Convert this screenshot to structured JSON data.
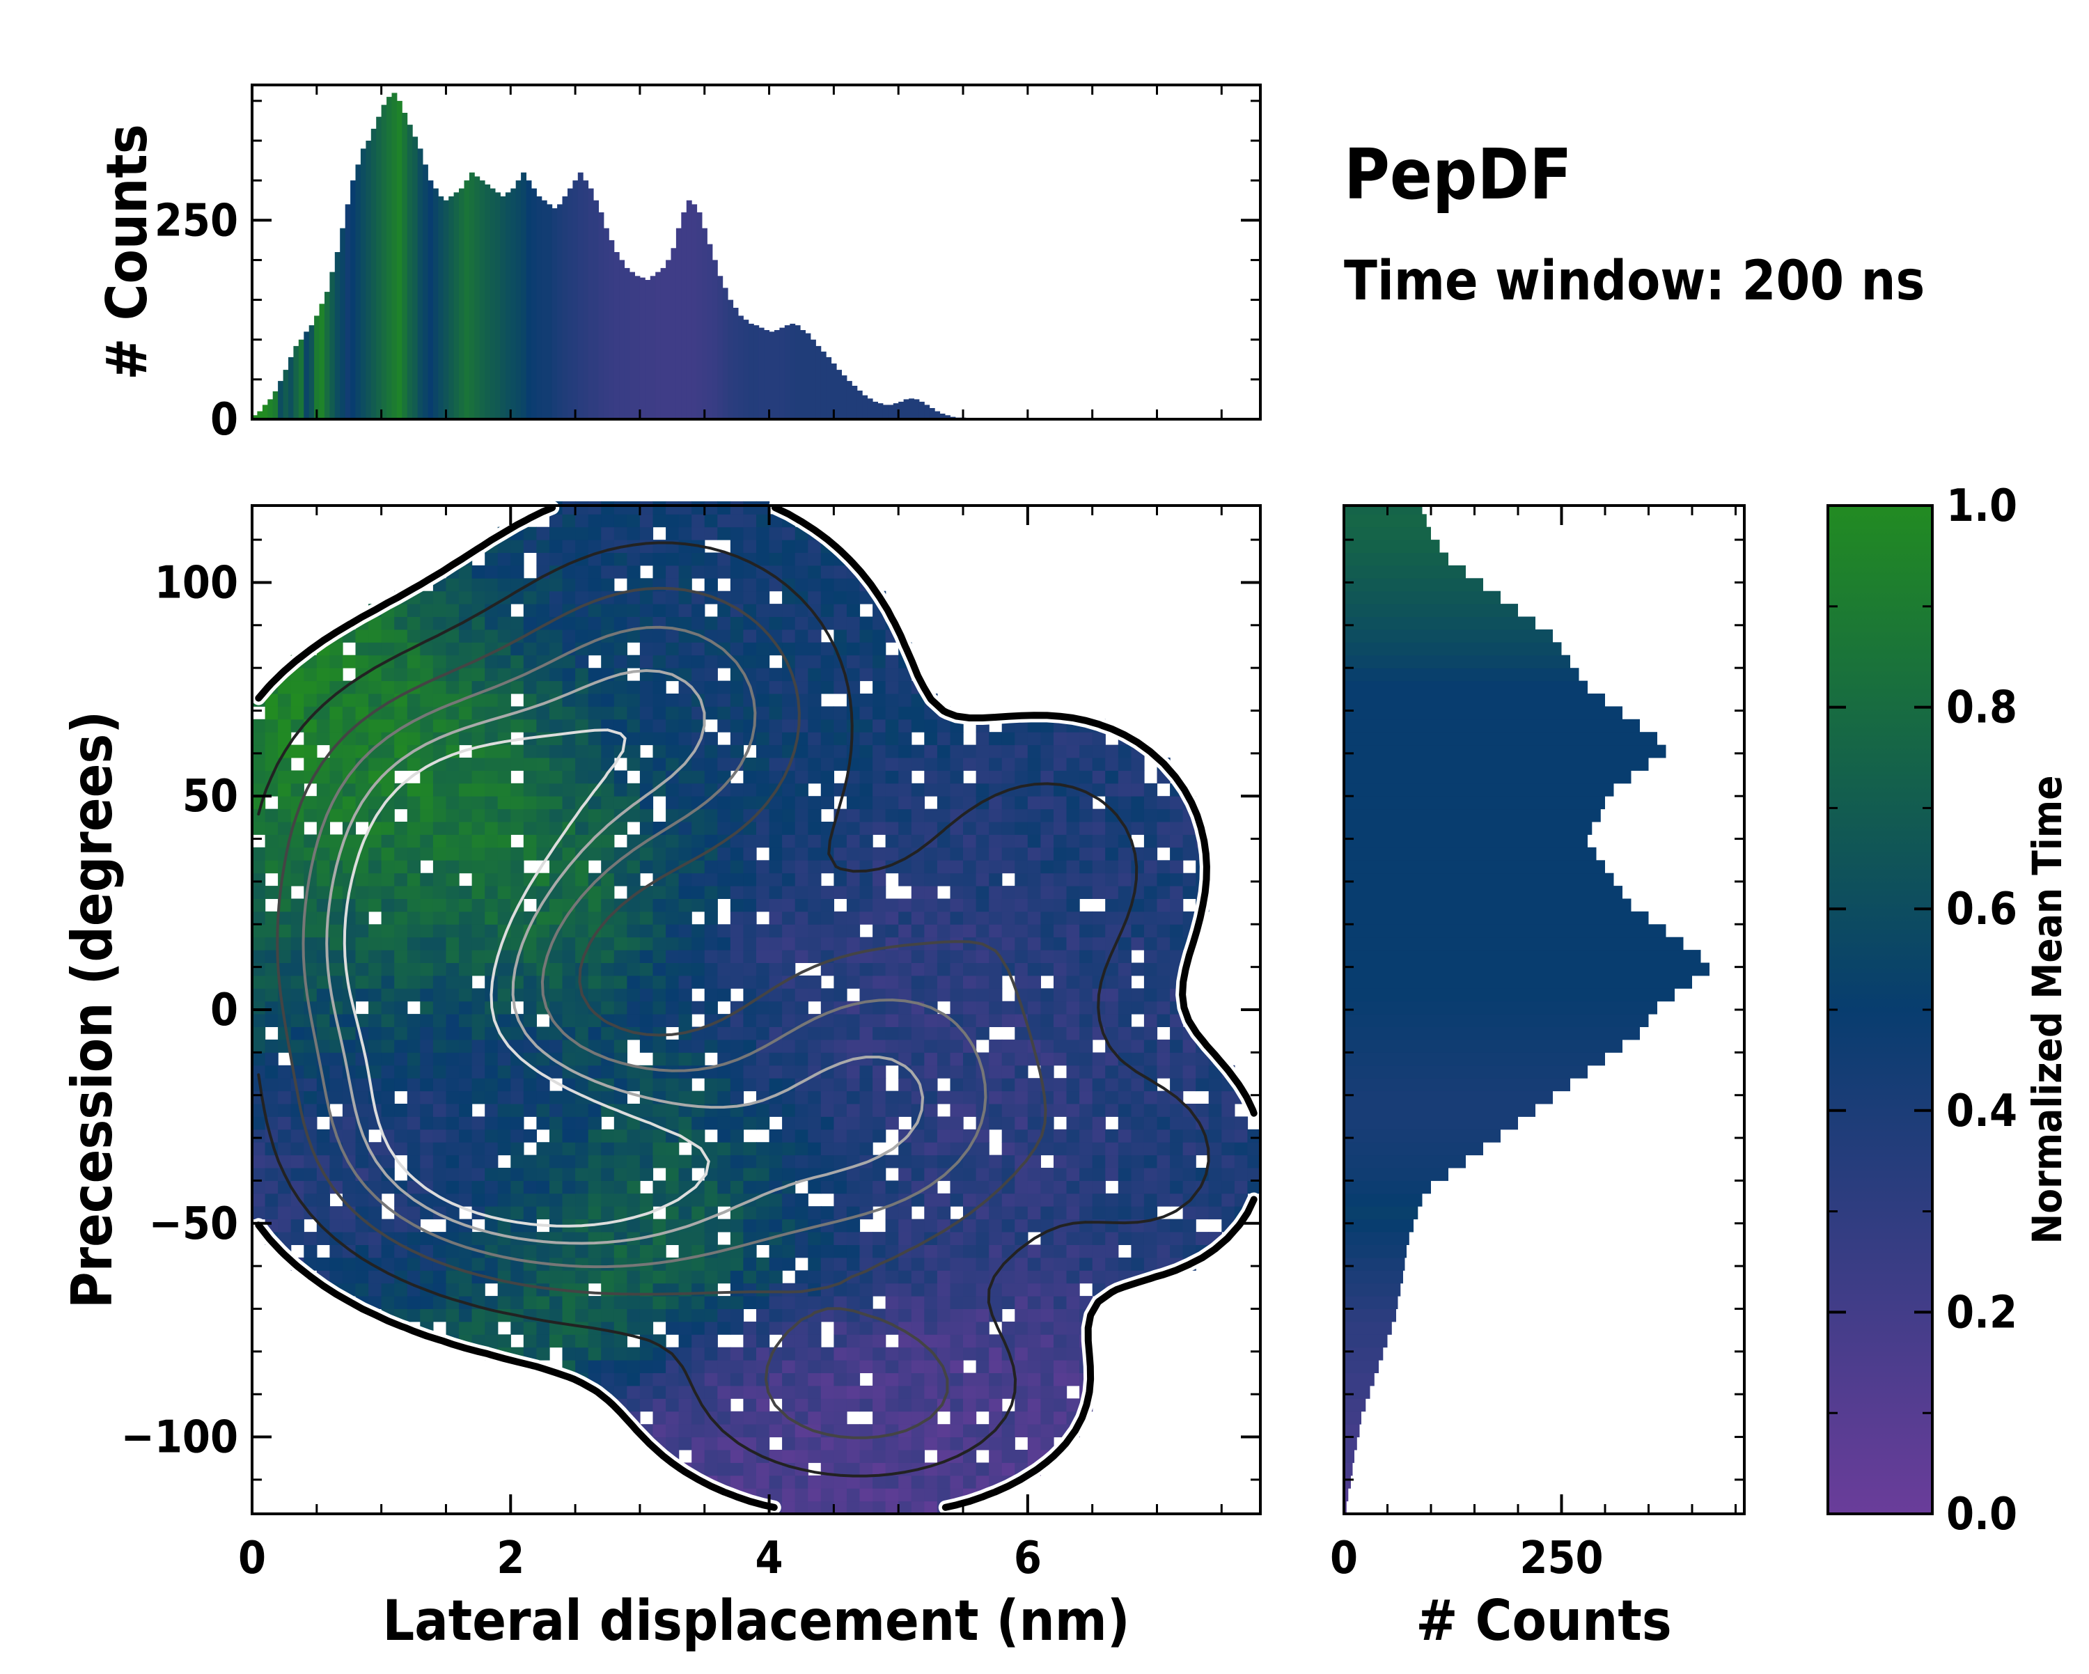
{
  "chart_data": {
    "type": "heatmap",
    "title": "PepDF",
    "subtitle": "Time window: 200 ns",
    "main": {
      "xlabel": "Lateral displacement (nm)",
      "ylabel": "Precession (degrees)",
      "xlim": [
        0,
        7.8
      ],
      "ylim": [
        -118,
        118
      ],
      "xticks": [
        0,
        2,
        4,
        6
      ],
      "yticks": [
        -100,
        -50,
        0,
        50,
        100
      ],
      "xticklabels": [
        "0",
        "2",
        "4",
        "6"
      ],
      "yticklabels": [
        "−100",
        "−50",
        "0",
        "50",
        "100"
      ],
      "grid": false,
      "bin_width": [
        0.1,
        3
      ],
      "clusters": [
        {
          "x": 1.6,
          "y": 45,
          "sx": 0.85,
          "sy": 22,
          "w": 1.0,
          "t": 0.95
        },
        {
          "x": 1.2,
          "y": 8,
          "sx": 0.7,
          "sy": 22,
          "w": 1.0,
          "t": 0.62
        },
        {
          "x": 1.6,
          "y": -30,
          "sx": 0.8,
          "sy": 18,
          "w": 0.8,
          "t": 0.2
        },
        {
          "x": 2.8,
          "y": -40,
          "sx": 1.0,
          "sy": 20,
          "w": 0.9,
          "t": 0.8
        },
        {
          "x": 3.2,
          "y": 70,
          "sx": 0.9,
          "sy": 25,
          "w": 0.85,
          "t": 0.45
        },
        {
          "x": 4.9,
          "y": -20,
          "sx": 1.0,
          "sy": 28,
          "w": 0.85,
          "t": 0.3
        },
        {
          "x": 4.7,
          "y": -90,
          "sx": 0.9,
          "sy": 15,
          "w": 0.55,
          "t": 0.15
        },
        {
          "x": 6.2,
          "y": 35,
          "sx": 0.7,
          "sy": 20,
          "w": 0.35,
          "t": 0.4
        },
        {
          "x": 7.0,
          "y": -35,
          "sx": 0.5,
          "sy": 15,
          "w": 0.3,
          "t": 0.4
        }
      ]
    },
    "top_histogram": {
      "ylabel": "# Counts",
      "ylim": [
        0,
        420
      ],
      "yticks": [
        0,
        250
      ],
      "yticklabels": [
        "0",
        "250"
      ],
      "x_start": 0,
      "bin_width": 0.04,
      "counts": [
        5,
        10,
        18,
        25,
        35,
        48,
        62,
        78,
        92,
        100,
        110,
        118,
        130,
        145,
        160,
        185,
        210,
        240,
        270,
        300,
        320,
        340,
        350,
        365,
        380,
        395,
        405,
        410,
        400,
        385,
        370,
        355,
        340,
        320,
        300,
        290,
        280,
        275,
        280,
        285,
        290,
        300,
        310,
        305,
        300,
        295,
        290,
        285,
        280,
        285,
        290,
        300,
        310,
        300,
        290,
        280,
        275,
        270,
        265,
        270,
        280,
        290,
        300,
        310,
        300,
        290,
        275,
        260,
        240,
        225,
        210,
        200,
        190,
        185,
        180,
        178,
        175,
        180,
        185,
        190,
        200,
        215,
        240,
        260,
        275,
        270,
        260,
        240,
        220,
        200,
        180,
        165,
        150,
        140,
        130,
        125,
        120,
        118,
        115,
        112,
        110,
        112,
        115,
        118,
        120,
        118,
        112,
        108,
        100,
        92,
        85,
        78,
        70,
        62,
        55,
        48,
        42,
        36,
        30,
        26,
        22,
        20,
        18,
        18,
        20,
        22,
        25,
        26,
        25,
        22,
        18,
        14,
        10,
        7,
        5,
        3,
        2,
        2,
        1,
        1
      ],
      "mean_time": [
        1.0,
        1.0,
        1.0,
        0.95,
        0.9,
        0.6,
        0.7,
        0.62,
        0.75,
        0.85,
        0.55,
        0.65,
        0.9,
        0.95,
        0.8,
        0.7,
        0.6,
        0.55,
        0.45,
        0.5,
        0.55,
        0.6,
        0.65,
        0.7,
        0.75,
        0.8,
        0.85,
        0.9,
        0.95,
        0.85,
        0.75,
        0.7,
        0.6,
        0.55,
        0.5,
        0.55,
        0.6,
        0.65,
        0.7,
        0.75,
        0.8,
        0.85,
        0.82,
        0.78,
        0.75,
        0.72,
        0.7,
        0.68,
        0.65,
        0.62,
        0.6,
        0.58,
        0.55,
        0.5,
        0.48,
        0.46,
        0.45,
        0.45,
        0.42,
        0.4,
        0.38,
        0.36,
        0.35,
        0.33,
        0.32,
        0.3,
        0.3,
        0.28,
        0.27,
        0.26,
        0.25,
        0.25,
        0.25,
        0.24,
        0.24,
        0.23,
        0.23,
        0.23,
        0.22,
        0.22,
        0.22,
        0.22,
        0.22,
        0.22,
        0.22,
        0.22,
        0.23,
        0.24,
        0.25,
        0.26,
        0.28,
        0.3,
        0.32,
        0.33,
        0.34,
        0.35,
        0.36,
        0.36,
        0.35,
        0.35,
        0.35,
        0.35,
        0.35,
        0.36,
        0.37,
        0.38,
        0.38,
        0.38,
        0.38,
        0.38,
        0.38,
        0.38,
        0.38,
        0.38,
        0.38,
        0.38,
        0.38,
        0.38,
        0.38,
        0.38,
        0.38,
        0.38,
        0.38,
        0.38,
        0.38,
        0.38,
        0.38,
        0.38,
        0.38,
        0.38,
        0.38,
        0.38,
        0.38,
        0.38,
        0.38,
        0.38,
        0.38,
        0.38,
        0.38,
        0.38
      ]
    },
    "right_histogram": {
      "xlabel": "# Counts",
      "xlim": [
        0,
        460
      ],
      "xticks": [
        0,
        250
      ],
      "xticklabels": [
        "0",
        "250"
      ],
      "y_start": -118,
      "bin_width": 3,
      "counts": [
        3,
        5,
        8,
        10,
        12,
        15,
        18,
        20,
        25,
        30,
        35,
        40,
        45,
        50,
        55,
        60,
        62,
        65,
        68,
        70,
        72,
        75,
        80,
        85,
        90,
        100,
        120,
        140,
        160,
        180,
        200,
        220,
        240,
        260,
        280,
        300,
        320,
        340,
        350,
        360,
        380,
        400,
        420,
        410,
        390,
        370,
        350,
        330,
        320,
        310,
        300,
        290,
        280,
        285,
        295,
        300,
        310,
        330,
        350,
        370,
        360,
        340,
        320,
        300,
        280,
        270,
        260,
        250,
        240,
        220,
        200,
        180,
        160,
        140,
        120,
        110,
        100,
        95,
        90,
        85,
        82,
        80,
        85,
        95,
        110,
        130,
        160,
        200,
        250,
        290,
        320,
        340,
        330,
        310,
        290,
        260,
        230,
        210,
        190,
        180,
        170,
        160,
        150,
        140,
        120,
        110,
        100,
        80,
        70,
        60,
        50,
        40,
        30,
        25,
        20,
        15,
        10,
        6,
        4,
        3
      ],
      "mean_time": [
        0.1,
        0.12,
        0.15,
        0.18,
        0.2,
        0.2,
        0.2,
        0.22,
        0.23,
        0.25,
        0.25,
        0.27,
        0.28,
        0.3,
        0.3,
        0.32,
        0.35,
        0.38,
        0.4,
        0.42,
        0.45,
        0.47,
        0.5,
        0.52,
        0.5,
        0.48,
        0.46,
        0.45,
        0.44,
        0.43,
        0.42,
        0.42,
        0.42,
        0.43,
        0.44,
        0.45,
        0.46,
        0.47,
        0.48,
        0.49,
        0.5,
        0.5,
        0.5,
        0.5,
        0.5,
        0.5,
        0.5,
        0.5,
        0.5,
        0.5,
        0.5,
        0.5,
        0.5,
        0.5,
        0.5,
        0.5,
        0.5,
        0.5,
        0.5,
        0.5,
        0.5,
        0.5,
        0.5,
        0.5,
        0.5,
        0.52,
        0.55,
        0.58,
        0.6,
        0.62,
        0.64,
        0.66,
        0.68,
        0.7,
        0.72,
        0.74,
        0.75,
        0.76,
        0.75,
        0.74,
        0.72,
        0.7,
        0.68,
        0.66,
        0.64,
        0.62,
        0.6,
        0.6,
        0.6,
        0.6,
        0.6,
        0.6,
        0.58,
        0.56,
        0.54,
        0.52,
        0.5,
        0.48,
        0.46,
        0.45,
        0.45,
        0.45,
        0.45,
        0.45,
        0.45,
        0.45,
        0.45,
        0.45,
        0.45,
        0.45,
        0.45,
        0.45,
        0.45,
        0.45,
        0.45,
        0.45,
        0.45,
        0.45,
        0.45,
        0.45
      ]
    },
    "colorbar": {
      "label": "Normalized Mean Time",
      "range": [
        0.0,
        1.0
      ],
      "ticks": [
        0.0,
        0.2,
        0.4,
        0.6,
        0.8,
        1.0
      ],
      "ticklabels": [
        "0.0",
        "0.2",
        "0.4",
        "0.6",
        "0.8",
        "1.0"
      ],
      "colormap": [
        {
          "t": 0.0,
          "color": "#6a3d9a"
        },
        {
          "t": 0.5,
          "color": "#083d6f"
        },
        {
          "t": 1.0,
          "color": "#228b22"
        }
      ]
    }
  }
}
